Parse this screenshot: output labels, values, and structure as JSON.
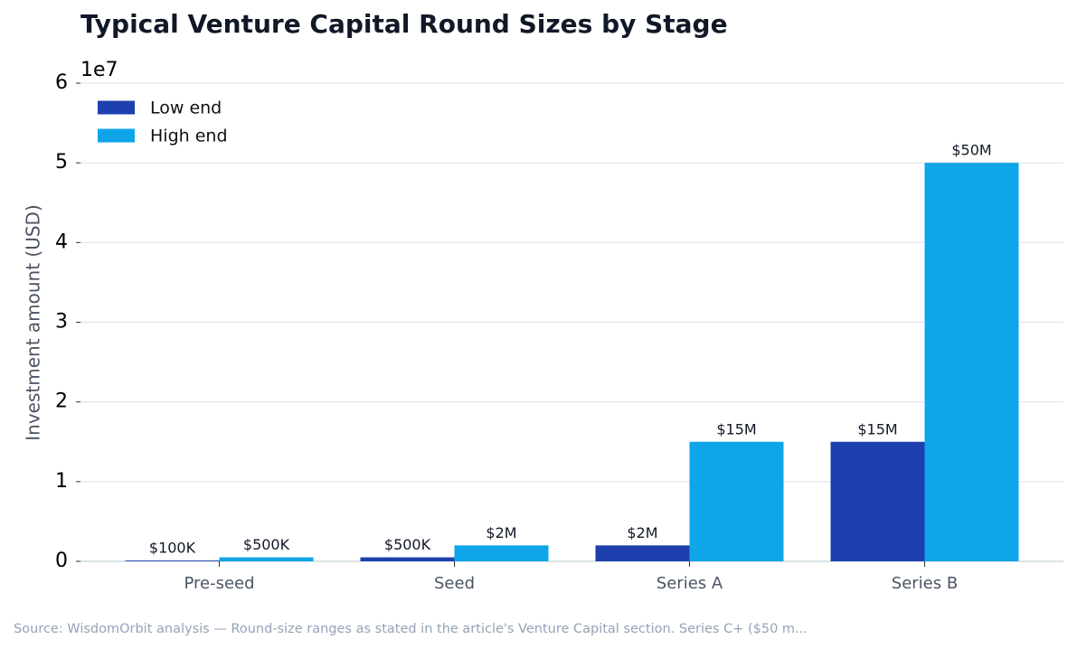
{
  "chart_data": {
    "type": "bar",
    "title": "Typical Venture Capital Round Sizes by Stage",
    "y_label": "Investment amount (USD)",
    "y_offset_label": "1e7",
    "categories": [
      "Pre-seed",
      "Seed",
      "Series A",
      "Series B"
    ],
    "series": [
      {
        "name": "Low end",
        "color": "#1e40af",
        "values": [
          100000,
          500000,
          2000000,
          15000000
        ],
        "value_labels": [
          "$100K",
          "$500K",
          "$2M",
          "$15M"
        ]
      },
      {
        "name": "High end",
        "color": "#0ea5e9",
        "values": [
          500000,
          2000000,
          15000000,
          50000000
        ],
        "value_labels": [
          "$500K",
          "$2M",
          "$15M",
          "$50M"
        ]
      }
    ],
    "ylim": [
      0,
      60000000
    ],
    "yticks": [
      0,
      {
        "value": 10000000,
        "label": "1"
      },
      {
        "value": 20000000,
        "label": "2"
      },
      {
        "value": 30000000,
        "label": "3"
      },
      {
        "value": 40000000,
        "label": "4"
      },
      {
        "value": 50000000,
        "label": "5"
      },
      {
        "value": 60000000,
        "label": "6"
      }
    ],
    "grid": true,
    "legend": "upper-left",
    "source": "Source: WisdomOrbit analysis — Round-size ranges as stated in the article's Venture Capital section. Series C+ ($50 m..."
  }
}
